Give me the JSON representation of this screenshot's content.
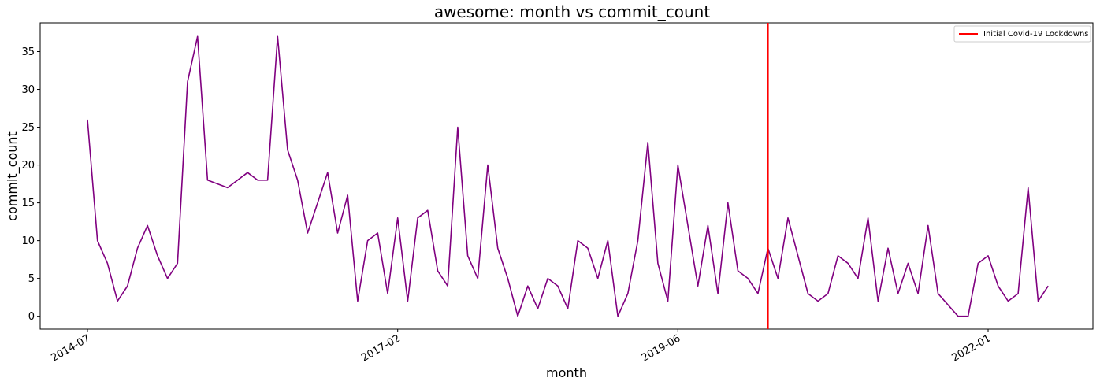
{
  "chart_data": {
    "type": "line",
    "title": "awesome: month vs commit_count",
    "xlabel": "month",
    "ylabel": "commit_count",
    "x_tick_labels": [
      "2014-07",
      "2017-02",
      "2019-06",
      "2022-01"
    ],
    "y_tick_labels": [
      "0",
      "5",
      "10",
      "15",
      "20",
      "25",
      "30",
      "35"
    ],
    "ylim": [
      -1.7,
      38.8
    ],
    "grid": false,
    "legend_position": "top-right",
    "series": [
      {
        "color": "#800080",
        "x": [
          "2014-07",
          "2014-08",
          "2014-09",
          "2014-10",
          "2014-11",
          "2014-12",
          "2015-01",
          "2015-02",
          "2015-03",
          "2015-04",
          "2015-05",
          "2015-06",
          "2015-07",
          "2015-09",
          "2015-11",
          "2015-12",
          "2016-01",
          "2016-02",
          "2016-03",
          "2016-04",
          "2016-05",
          "2016-07",
          "2016-08",
          "2016-09",
          "2016-10",
          "2016-11",
          "2016-12",
          "2017-01",
          "2017-02",
          "2017-03",
          "2017-04",
          "2017-05",
          "2017-06",
          "2017-07",
          "2017-08",
          "2017-09",
          "2017-10",
          "2017-11",
          "2017-12",
          "2018-01",
          "2018-02",
          "2018-03",
          "2018-04",
          "2018-05",
          "2018-06",
          "2018-07",
          "2018-08",
          "2018-09",
          "2018-10",
          "2018-11",
          "2018-12",
          "2019-01",
          "2019-02",
          "2019-03",
          "2019-04",
          "2019-05",
          "2019-06",
          "2019-08",
          "2019-09",
          "2019-10",
          "2019-11",
          "2019-12",
          "2020-01",
          "2020-02",
          "2020-03",
          "2020-04",
          "2020-05",
          "2020-07",
          "2020-08",
          "2020-09",
          "2020-10",
          "2020-11",
          "2020-12",
          "2021-01",
          "2021-02",
          "2021-03",
          "2021-04",
          "2021-05",
          "2021-06",
          "2021-07",
          "2021-08",
          "2021-10",
          "2021-11",
          "2021-12",
          "2022-01",
          "2022-02",
          "2022-03",
          "2022-04",
          "2022-05",
          "2022-06",
          "2022-07"
        ],
        "values": [
          26,
          10,
          7,
          2,
          4,
          9,
          12,
          8,
          5,
          7,
          31,
          37,
          18,
          17,
          19,
          18,
          18,
          37,
          22,
          18,
          11,
          19,
          11,
          16,
          2,
          10,
          11,
          3,
          13,
          2,
          13,
          14,
          6,
          4,
          25,
          8,
          5,
          20,
          9,
          5,
          0,
          4,
          1,
          5,
          4,
          1,
          10,
          9,
          5,
          10,
          0,
          3,
          10,
          23,
          7,
          2,
          20,
          4,
          12,
          3,
          15,
          6,
          5,
          3,
          9,
          5,
          13,
          3,
          2,
          3,
          8,
          7,
          5,
          13,
          2,
          9,
          3,
          7,
          3,
          12,
          3,
          0,
          0,
          7,
          8,
          4,
          2,
          3,
          17,
          2,
          4
        ]
      }
    ],
    "annotations": [
      {
        "type": "vline",
        "x": "2020-03",
        "color": "#ff0000",
        "label": "Initial Covid-19 Lockdowns"
      }
    ]
  }
}
